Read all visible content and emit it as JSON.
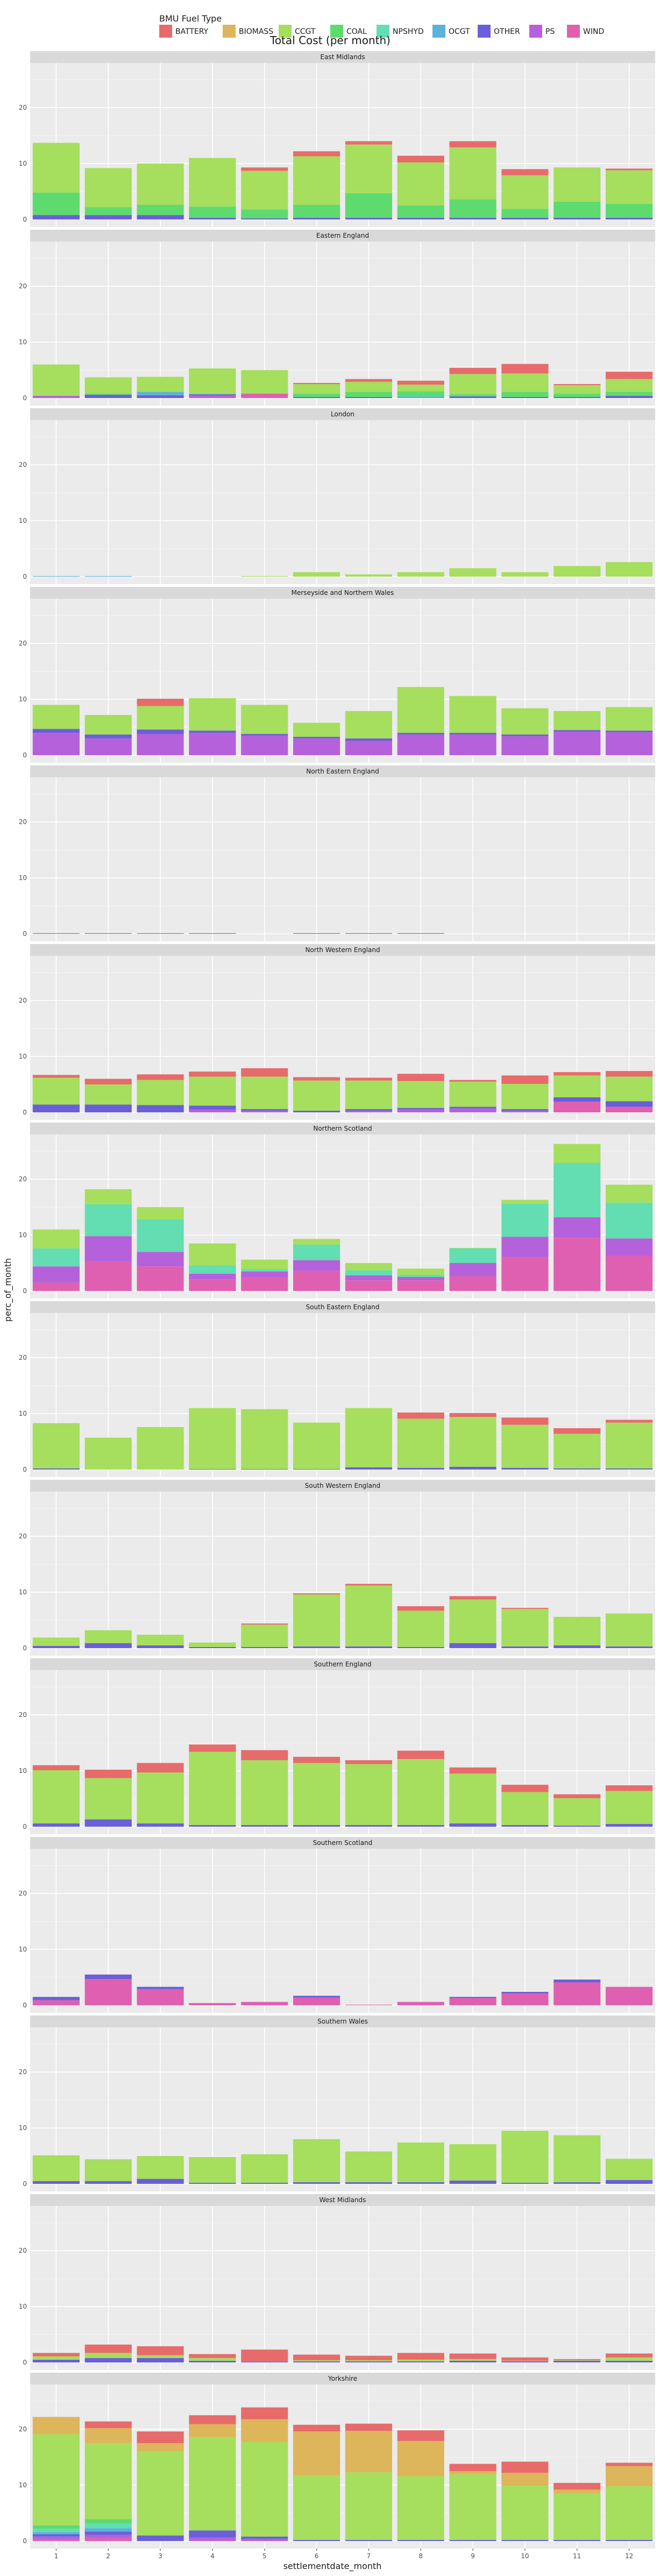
{
  "chart_data": {
    "type": "bar",
    "stacked": true,
    "faceted": true,
    "title": "Total Cost (per month)",
    "xlabel": "settlementdate_month",
    "ylabel": "perc_of_month",
    "ylim": [
      0,
      28
    ],
    "yticks": [
      0,
      10,
      20
    ],
    "categories": [
      "1",
      "2",
      "3",
      "4",
      "5",
      "6",
      "7",
      "8",
      "9",
      "10",
      "11",
      "12"
    ],
    "grid": true,
    "legend": {
      "title": "BMU Fuel Type",
      "position": "top",
      "items": [
        {
          "name": "BATTERY",
          "color": "#E76B6B"
        },
        {
          "name": "BIOMASS",
          "color": "#DDB55A"
        },
        {
          "name": "CCGT",
          "color": "#A6DE5D"
        },
        {
          "name": "COAL",
          "color": "#5EDB6F"
        },
        {
          "name": "NPSHYD",
          "color": "#62DEB2"
        },
        {
          "name": "OCGT",
          "color": "#5CB2D9"
        },
        {
          "name": "OTHER",
          "color": "#6A5FD8"
        },
        {
          "name": "PS",
          "color": "#B661DC"
        },
        {
          "name": "WIND",
          "color": "#DF60B0"
        }
      ]
    },
    "facets": [
      {
        "name": "East Midlands",
        "stacks": [
          {
            "OTHER": 0.8,
            "COAL": 4.0,
            "CCGT": 8.9
          },
          {
            "OTHER": 0.8,
            "COAL": 1.4,
            "CCGT": 7.0
          },
          {
            "OTHER": 0.8,
            "COAL": 1.8,
            "CCGT": 7.4
          },
          {
            "OTHER": 0.3,
            "COAL": 2.0,
            "CCGT": 8.7
          },
          {
            "OTHER": 0.2,
            "COAL": 1.6,
            "CCGT": 6.9,
            "BATTERY": 0.6
          },
          {
            "OTHER": 0.3,
            "COAL": 2.3,
            "CCGT": 8.7,
            "BATTERY": 0.9
          },
          {
            "OTHER": 0.3,
            "COAL": 4.4,
            "CCGT": 8.7,
            "BATTERY": 0.6
          },
          {
            "OTHER": 0.3,
            "COAL": 2.2,
            "CCGT": 7.7,
            "BATTERY": 1.2
          },
          {
            "OTHER": 0.3,
            "COAL": 3.3,
            "CCGT": 9.3,
            "BATTERY": 1.1
          },
          {
            "OTHER": 0.3,
            "COAL": 1.6,
            "CCGT": 6.0,
            "BATTERY": 1.1
          },
          {
            "OTHER": 0.3,
            "COAL": 2.9,
            "CCGT": 6.1
          },
          {
            "OTHER": 0.3,
            "COAL": 2.5,
            "CCGT": 6.0,
            "BATTERY": 0.3
          }
        ]
      },
      {
        "name": "Eastern England",
        "stacks": [
          {
            "PS": 0.4,
            "CCGT": 5.6
          },
          {
            "OTHER": 0.6,
            "COAL": 0.2,
            "CCGT": 2.9
          },
          {
            "OTHER": 0.5,
            "OCGT": 0.6,
            "CCGT": 2.7
          },
          {
            "OTHER": 0.2,
            "PS": 0.5,
            "CCGT": 4.6
          },
          {
            "WIND": 0.8,
            "CCGT": 4.2
          },
          {
            "OTHER": 0.2,
            "COAL": 0.6,
            "CCGT": 1.7,
            "BATTERY": 0.2
          },
          {
            "OTHER": 0.2,
            "COAL": 0.9,
            "CCGT": 1.8,
            "BATTERY": 0.5
          },
          {
            "OCGT": 0.3,
            "COAL": 0.9,
            "CCGT": 1.2,
            "BATTERY": 0.7
          },
          {
            "OTHER": 0.3,
            "COAL": 0.4,
            "CCGT": 3.6,
            "BATTERY": 1.1
          },
          {
            "OTHER": 0.2,
            "COAL": 0.9,
            "CCGT": 3.3,
            "BATTERY": 1.7
          },
          {
            "OTHER": 0.2,
            "COAL": 0.6,
            "CCGT": 1.5,
            "BATTERY": 0.2
          },
          {
            "OTHER": 0.4,
            "COAL": 0.7,
            "CCGT": 2.3,
            "BATTERY": 1.3
          }
        ]
      },
      {
        "name": "London",
        "stacks": [
          {
            "OCGT": 0.1
          },
          {
            "OCGT": 0.1
          },
          {},
          {},
          {
            "CCGT": 0.1
          },
          {
            "CCGT": 0.8
          },
          {
            "CCGT": 0.4
          },
          {
            "CCGT": 0.8
          },
          {
            "CCGT": 1.5
          },
          {
            "CCGT": 0.8
          },
          {
            "CCGT": 1.9
          },
          {
            "CCGT": 2.6
          }
        ]
      },
      {
        "name": "Merseyside and Northern Wales",
        "stacks": [
          {
            "PS": 4.0,
            "OTHER": 0.7,
            "CCGT": 4.3
          },
          {
            "PS": 3.0,
            "OTHER": 0.7,
            "CCGT": 3.5
          },
          {
            "BATTERY": 1.3,
            "PS": 3.8,
            "OTHER": 0.8,
            "CCGT": 4.2
          },
          {
            "PS": 4.0,
            "OTHER": 0.4,
            "CCGT": 5.8
          },
          {
            "PS": 3.5,
            "OTHER": 0.3,
            "CCGT": 5.2
          },
          {
            "PS": 3.0,
            "OTHER": 0.3,
            "CCGT": 2.5
          },
          {
            "PS": 2.6,
            "OTHER": 0.4,
            "CCGT": 4.9
          },
          {
            "PS": 3.7,
            "OTHER": 0.3,
            "CCGT": 8.2
          },
          {
            "PS": 3.7,
            "OTHER": 0.3,
            "CCGT": 6.6
          },
          {
            "PS": 3.4,
            "OTHER": 0.3,
            "CCGT": 4.7
          },
          {
            "PS": 4.2,
            "OTHER": 0.3,
            "CCGT": 3.4
          },
          {
            "PS": 4.1,
            "OTHER": 0.3,
            "CCGT": 4.2
          }
        ]
      },
      {
        "name": "North Eastern England",
        "stacks": [
          {
            "OTHER": 0.1
          },
          {
            "OTHER": 0.1
          },
          {
            "OTHER": 0.1
          },
          {
            "OTHER": 0.1
          },
          {},
          {
            "OTHER": 0.1
          },
          {
            "OTHER": 0.1
          },
          {
            "OTHER": 0.1
          },
          {},
          {},
          {},
          {}
        ]
      },
      {
        "name": "North Western England",
        "stacks": [
          {
            "OTHER": 1.4,
            "CCGT": 4.8,
            "BATTERY": 0.5
          },
          {
            "OTHER": 1.4,
            "CCGT": 3.6,
            "BATTERY": 1.0
          },
          {
            "OTHER": 1.3,
            "CCGT": 4.5,
            "BATTERY": 1.0
          },
          {
            "OTHER": 0.7,
            "PS": 0.5,
            "CCGT": 5.2,
            "BATTERY": 0.9
          },
          {
            "OTHER": 0.3,
            "PS": 0.3,
            "CCGT": 5.8,
            "BATTERY": 1.5
          },
          {
            "OTHER": 0.3,
            "CCGT": 5.4,
            "BATTERY": 0.6
          },
          {
            "OTHER": 0.3,
            "PS": 0.3,
            "CCGT": 5.1,
            "BATTERY": 0.5
          },
          {
            "OTHER": 0.3,
            "PS": 0.5,
            "CCGT": 4.8,
            "BATTERY": 1.3
          },
          {
            "OTHER": 0.3,
            "PS": 0.7,
            "CCGT": 4.5,
            "BATTERY": 0.3
          },
          {
            "OTHER": 0.3,
            "PS": 0.3,
            "CCGT": 4.5,
            "BATTERY": 1.5
          },
          {
            "WIND": 1.9,
            "OTHER": 0.8,
            "CCGT": 3.9,
            "BATTERY": 0.6
          },
          {
            "WIND": 1.0,
            "OTHER": 1.0,
            "CCGT": 4.4,
            "BATTERY": 1.0
          }
        ]
      },
      {
        "name": "Northern Scotland",
        "stacks": [
          {
            "WIND": 1.5,
            "PS": 2.9,
            "NPSHYD": 3.2,
            "CCGT": 3.4
          },
          {
            "WIND": 5.3,
            "PS": 4.5,
            "NPSHYD": 5.7,
            "CCGT": 2.7
          },
          {
            "WIND": 4.4,
            "PS": 2.6,
            "NPSHYD": 5.8,
            "CCGT": 2.2
          },
          {
            "WIND": 2.1,
            "PS": 1.0,
            "NPSHYD": 1.5,
            "CCGT": 3.9
          },
          {
            "WIND": 2.5,
            "PS": 1.0,
            "NPSHYD": 0.4,
            "CCGT": 1.7
          },
          {
            "WIND": 3.6,
            "PS": 1.9,
            "NPSHYD": 2.8,
            "CCGT": 1.0
          },
          {
            "WIND": 1.9,
            "PS": 0.9,
            "NPSHYD": 0.9,
            "CCGT": 1.3
          },
          {
            "WIND": 1.9,
            "PS": 0.6,
            "NPSHYD": 0.4,
            "CCGT": 1.1
          },
          {
            "WIND": 2.6,
            "PS": 2.4,
            "NPSHYD": 2.6,
            "CCGT": 0.1
          },
          {
            "WIND": 6.0,
            "PS": 3.7,
            "NPSHYD": 5.9,
            "CCGT": 0.7
          },
          {
            "WIND": 9.5,
            "PS": 3.7,
            "NPSHYD": 9.7,
            "CCGT": 3.4
          },
          {
            "WIND": 6.3,
            "PS": 3.1,
            "NPSHYD": 6.4,
            "CCGT": 3.2
          }
        ]
      },
      {
        "name": "South Eastern England",
        "stacks": [
          {
            "OTHER": 0.2,
            "CCGT": 8.1
          },
          {
            "CCGT": 5.7
          },
          {
            "CCGT": 7.6
          },
          {
            "OTHER": 0.1,
            "CCGT": 10.9
          },
          {
            "OTHER": 0.1,
            "CCGT": 10.7
          },
          {
            "OTHER": 0.1,
            "CCGT": 8.3
          },
          {
            "OTHER": 0.4,
            "CCGT": 10.6
          },
          {
            "OTHER": 0.3,
            "CCGT": 8.8,
            "BATTERY": 1.1
          },
          {
            "OTHER": 0.5,
            "CCGT": 8.9,
            "BATTERY": 0.7
          },
          {
            "OTHER": 0.3,
            "CCGT": 7.7,
            "BATTERY": 1.3
          },
          {
            "OTHER": 0.2,
            "CCGT": 6.2,
            "BATTERY": 1.0
          },
          {
            "OTHER": 0.2,
            "CCGT": 8.2,
            "BATTERY": 0.5
          }
        ]
      },
      {
        "name": "South Western England",
        "stacks": [
          {
            "OTHER": 0.4,
            "CCGT": 1.5
          },
          {
            "OTHER": 0.9,
            "CCGT": 2.3
          },
          {
            "OTHER": 0.5,
            "CCGT": 1.9
          },
          {
            "OTHER": 0.2,
            "CCGT": 0.8
          },
          {
            "OTHER": 0.2,
            "CCGT": 4.0,
            "BATTERY": 0.2
          },
          {
            "OTHER": 0.3,
            "CCGT": 9.3,
            "BATTERY": 0.2
          },
          {
            "OTHER": 0.3,
            "CCGT": 10.9,
            "BATTERY": 0.3
          },
          {
            "OTHER": 0.2,
            "CCGT": 6.5,
            "BATTERY": 0.8
          },
          {
            "OTHER": 0.9,
            "CCGT": 7.8,
            "BATTERY": 0.6
          },
          {
            "OTHER": 0.3,
            "CCGT": 6.7,
            "BATTERY": 0.2
          },
          {
            "OTHER": 0.5,
            "CCGT": 5.1
          },
          {
            "OTHER": 0.3,
            "CCGT": 5.9
          }
        ]
      },
      {
        "name": "Southern England",
        "stacks": [
          {
            "OTHER": 0.6,
            "CCGT": 9.5,
            "BATTERY": 0.9
          },
          {
            "OTHER": 1.3,
            "CCGT": 7.4,
            "BATTERY": 1.5
          },
          {
            "OTHER": 0.6,
            "CCGT": 9.1,
            "BATTERY": 1.7
          },
          {
            "OTHER": 0.3,
            "CCGT": 13.1,
            "BATTERY": 1.3
          },
          {
            "OTHER": 0.3,
            "CCGT": 11.6,
            "BATTERY": 1.8
          },
          {
            "OTHER": 0.3,
            "CCGT": 11.1,
            "BATTERY": 1.1
          },
          {
            "OTHER": 0.3,
            "CCGT": 10.9,
            "BATTERY": 0.7
          },
          {
            "OTHER": 0.3,
            "CCGT": 11.8,
            "BATTERY": 1.5
          },
          {
            "OTHER": 0.6,
            "CCGT": 8.9,
            "BATTERY": 1.1
          },
          {
            "OTHER": 0.3,
            "CCGT": 5.9,
            "BATTERY": 1.3
          },
          {
            "OTHER": 0.2,
            "CCGT": 4.9,
            "BATTERY": 0.7
          },
          {
            "OTHER": 0.5,
            "CCGT": 5.9,
            "BATTERY": 1.0
          }
        ]
      },
      {
        "name": "Southern Scotland",
        "stacks": [
          {
            "WIND": 0.9,
            "OTHER": 0.6
          },
          {
            "WIND": 4.7,
            "OTHER": 0.8
          },
          {
            "WIND": 2.9,
            "OTHER": 0.4
          },
          {
            "WIND": 0.4
          },
          {
            "WIND": 0.6
          },
          {
            "WIND": 1.4,
            "OTHER": 0.3
          },
          {
            "WIND": 0.1
          },
          {
            "WIND": 0.6
          },
          {
            "WIND": 1.3,
            "OTHER": 0.2
          },
          {
            "WIND": 2.1,
            "OTHER": 0.3
          },
          {
            "WIND": 4.1,
            "OTHER": 0.5
          },
          {
            "WIND": 3.3
          }
        ]
      },
      {
        "name": "Southern Wales",
        "stacks": [
          {
            "OTHER": 0.5,
            "CCGT": 4.6
          },
          {
            "OTHER": 0.5,
            "CCGT": 3.9
          },
          {
            "OTHER": 0.9,
            "CCGT": 4.1
          },
          {
            "OTHER": 0.2,
            "CCGT": 4.6
          },
          {
            "OTHER": 0.2,
            "CCGT": 5.1
          },
          {
            "OTHER": 0.3,
            "CCGT": 7.7
          },
          {
            "OTHER": 0.3,
            "CCGT": 5.5
          },
          {
            "OTHER": 0.3,
            "CCGT": 7.1
          },
          {
            "OTHER": 0.6,
            "CCGT": 6.5
          },
          {
            "OTHER": 0.2,
            "CCGT": 9.3
          },
          {
            "OTHER": 0.3,
            "CCGT": 8.4
          },
          {
            "OTHER": 0.7,
            "CCGT": 3.8
          }
        ]
      },
      {
        "name": "West Midlands",
        "stacks": [
          {
            "OTHER": 0.5,
            "CCGT": 0.6,
            "BATTERY": 0.6
          },
          {
            "OTHER": 0.8,
            "CCGT": 0.9,
            "BATTERY": 1.5
          },
          {
            "OTHER": 0.8,
            "CCGT": 0.5,
            "BATTERY": 1.6
          },
          {
            "OTHER": 0.3,
            "CCGT": 0.5,
            "BATTERY": 0.7
          },
          {
            "OTHER": 0.1,
            "BATTERY": 2.2
          },
          {
            "OTHER": 0.2,
            "CCGT": 0.2,
            "BATTERY": 1.0
          },
          {
            "OTHER": 0.2,
            "CCGT": 0.2,
            "BATTERY": 0.8
          },
          {
            "OTHER": 0.2,
            "CCGT": 0.3,
            "BATTERY": 1.2
          },
          {
            "OTHER": 0.3,
            "CCGT": 0.3,
            "BATTERY": 1.0
          },
          {
            "OTHER": 0.2,
            "CCGT": 0.1,
            "BATTERY": 0.6
          },
          {
            "OTHER": 0.3,
            "CCGT": 0.1,
            "BATTERY": 0.2
          },
          {
            "OTHER": 0.3,
            "CCGT": 0.6,
            "BATTERY": 0.7
          }
        ]
      },
      {
        "name": "Yorkshire",
        "stacks": [
          {
            "WIND": 0.3,
            "PS": 0.5,
            "OTHER": 0.4,
            "OCGT": 0.4,
            "NPSHYD": 0.6,
            "COAL": 0.6,
            "CCGT": 16.3,
            "BIOMASS": 3.1
          },
          {
            "WIND": 0.5,
            "PS": 0.6,
            "OTHER": 0.6,
            "OCGT": 0.6,
            "NPSHYD": 0.8,
            "COAL": 0.8,
            "CCGT": 13.6,
            "BIOMASS": 2.7,
            "BATTERY": 1.2
          },
          {
            "OTHER": 1.0,
            "CCGT": 15.0,
            "BIOMASS": 1.5,
            "BATTERY": 2.1
          },
          {
            "OTHER": 1.3,
            "PS": 0.6,
            "CCGT": 16.7,
            "BIOMASS": 2.3,
            "BATTERY": 1.6
          },
          {
            "OTHER": 0.4,
            "PS": 0.4,
            "CCGT": 16.9,
            "BIOMASS": 4.1,
            "BATTERY": 2.1
          },
          {
            "OTHER": 0.2,
            "CCGT": 11.5,
            "BIOMASS": 7.9,
            "BATTERY": 1.2
          },
          {
            "OTHER": 0.2,
            "CCGT": 12.1,
            "BIOMASS": 7.4,
            "BATTERY": 1.3
          },
          {
            "OTHER": 0.2,
            "CCGT": 11.4,
            "BIOMASS": 6.3,
            "BATTERY": 1.9
          },
          {
            "OTHER": 0.2,
            "CCGT": 11.8,
            "BIOMASS": 0.5,
            "BATTERY": 1.3
          },
          {
            "OTHER": 0.2,
            "CCGT": 9.7,
            "BIOMASS": 2.3,
            "BATTERY": 2.0
          },
          {
            "OTHER": 0.2,
            "CCGT": 8.3,
            "BIOMASS": 0.7,
            "BATTERY": 1.2
          },
          {
            "OTHER": 0.2,
            "CCGT": 9.6,
            "BIOMASS": 3.6,
            "BATTERY": 0.6
          }
        ]
      }
    ]
  }
}
